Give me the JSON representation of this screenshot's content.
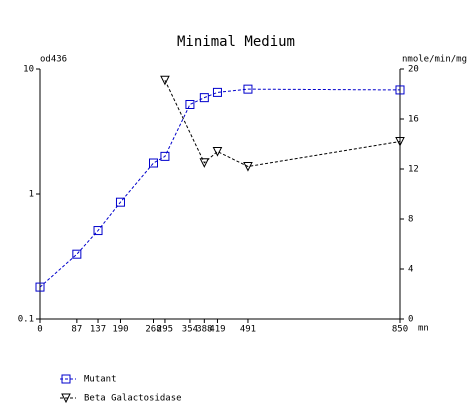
{
  "chart_data": {
    "type": "line",
    "title": "Minimal Medium",
    "y_label": "od436",
    "y2_label": "nmole/min/mg",
    "x_label": "mn",
    "x": [
      0,
      87,
      137,
      190,
      268,
      295,
      354,
      388,
      419,
      491,
      850
    ],
    "xlim": [
      0,
      850
    ],
    "xticks": [
      0,
      87,
      137,
      190,
      268,
      295,
      354,
      388,
      419,
      491,
      850
    ],
    "ylim": [
      0.1,
      10
    ],
    "yticks": [
      0.1,
      1,
      10
    ],
    "yscale": "log",
    "y2lim": [
      0,
      20
    ],
    "y2ticks": [
      0,
      4,
      8,
      12,
      16,
      20
    ],
    "series": [
      {
        "name": "Mutant",
        "color": "#0000cc",
        "marker": "square",
        "x": [
          0,
          87,
          137,
          190,
          268,
          295,
          354,
          388,
          419,
          491,
          850
        ],
        "values": [
          0.18,
          0.33,
          0.51,
          0.86,
          1.77,
          2.0,
          5.2,
          5.9,
          6.5,
          6.9,
          6.8
        ]
      },
      {
        "name": "Beta Galactosidase",
        "color": "#000000",
        "marker": "triangle",
        "axis": "y2",
        "x": [
          295,
          388,
          419,
          491,
          850
        ],
        "values": [
          19.1,
          12.5,
          13.4,
          12.2,
          14.2
        ]
      }
    ]
  }
}
